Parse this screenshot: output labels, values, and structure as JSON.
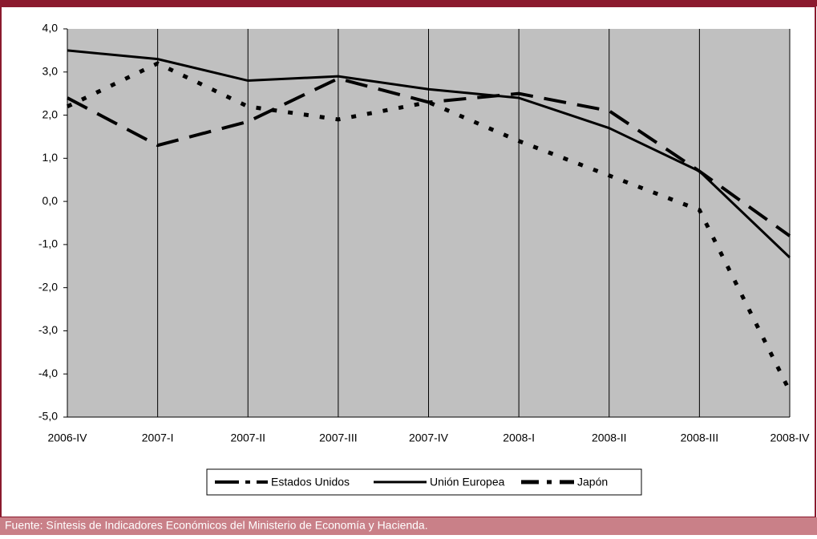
{
  "chart_data": {
    "type": "line",
    "categories": [
      "2006-IV",
      "2007-I",
      "2007-II",
      "2007-III",
      "2007-IV",
      "2008-I",
      "2008-II",
      "2008-III",
      "2008-IV"
    ],
    "series": [
      {
        "name": "Estados Unidos",
        "color": "#000000",
        "dash": "28 14",
        "width": 4,
        "values": [
          2.4,
          1.3,
          1.85,
          2.85,
          2.3,
          2.5,
          2.1,
          0.7,
          -0.8
        ]
      },
      {
        "name": "Unión Europea",
        "color": "#000000",
        "dash": "none",
        "width": 3,
        "values": [
          3.5,
          3.3,
          2.8,
          2.9,
          2.6,
          2.4,
          1.7,
          0.7,
          -1.3
        ]
      },
      {
        "name": "Japón",
        "color": "#000000",
        "dash": "6 14",
        "width": 5,
        "values": [
          2.2,
          3.2,
          2.2,
          1.9,
          2.3,
          1.4,
          0.6,
          -0.2,
          -4.4
        ]
      }
    ],
    "ylim": [
      -5,
      4
    ],
    "yticks": [
      {
        "value": -5,
        "label": "-5,0"
      },
      {
        "value": -4,
        "label": "-4,0"
      },
      {
        "value": -3,
        "label": "-3,0"
      },
      {
        "value": -2,
        "label": "-2,0"
      },
      {
        "value": -1,
        "label": "-1,0"
      },
      {
        "value": 0,
        "label": "0,0"
      },
      {
        "value": 1,
        "label": "1,0"
      },
      {
        "value": 2,
        "label": "2,0"
      },
      {
        "value": 3,
        "label": "3,0"
      },
      {
        "value": 4,
        "label": "4,0"
      }
    ],
    "grid": "x",
    "legend": "bottom",
    "source": "Fuente: Síntesis de Indicadores Económicos del Ministerio de Economía y Hacienda."
  }
}
